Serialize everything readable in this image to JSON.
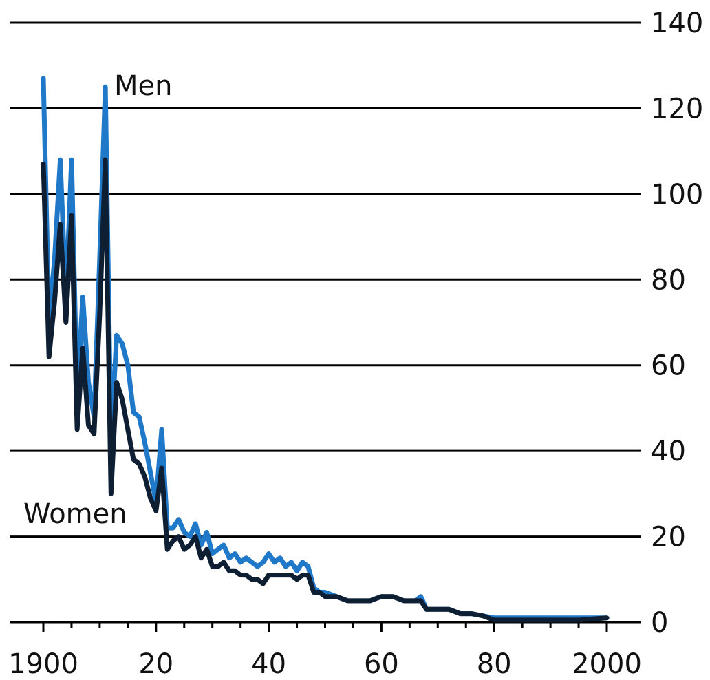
{
  "chart_data": {
    "type": "line",
    "title": "",
    "xlabel": "",
    "ylabel": "",
    "xlim": [
      1900,
      2000
    ],
    "ylim": [
      0,
      140
    ],
    "y_ticks": [
      0,
      20,
      40,
      60,
      80,
      100,
      120,
      140
    ],
    "x_ticks": [
      1900,
      1920,
      1940,
      1960,
      1980,
      2000
    ],
    "x_tick_labels": [
      "1900",
      "20",
      "40",
      "60",
      "80",
      "2000"
    ],
    "y_axis_side": "right",
    "grid": "horizontal",
    "legend": "none",
    "annotations": [
      {
        "text": "Men",
        "series": "Men"
      },
      {
        "text": "Women",
        "series": "Women"
      }
    ],
    "series": [
      {
        "name": "Men",
        "color": "#1f78c8",
        "x": [
          1900,
          1901,
          1902,
          1903,
          1904,
          1905,
          1906,
          1907,
          1908,
          1909,
          1910,
          1911,
          1912,
          1913,
          1914,
          1915,
          1916,
          1917,
          1918,
          1919,
          1920,
          1921,
          1922,
          1923,
          1924,
          1925,
          1926,
          1927,
          1928,
          1929,
          1930,
          1931,
          1932,
          1933,
          1934,
          1935,
          1936,
          1937,
          1938,
          1939,
          1940,
          1941,
          1942,
          1943,
          1944,
          1945,
          1946,
          1947,
          1948,
          1949,
          1950,
          1952,
          1954,
          1956,
          1958,
          1960,
          1962,
          1964,
          1966,
          1967,
          1968,
          1970,
          1972,
          1974,
          1976,
          1978,
          1980,
          1982,
          1985,
          1990,
          1995,
          2000
        ],
        "values": [
          127,
          70,
          85,
          108,
          75,
          108,
          52,
          76,
          56,
          48,
          85,
          125,
          42,
          67,
          65,
          60,
          49,
          48,
          42,
          35,
          28,
          45,
          22,
          22,
          24,
          21,
          20,
          23,
          18,
          21,
          16,
          17,
          18,
          15,
          16,
          14,
          15,
          14,
          13,
          14,
          16,
          14,
          15,
          13,
          14,
          12,
          14,
          13,
          8,
          7,
          7,
          6,
          5,
          5,
          5,
          6,
          6,
          5,
          5,
          6,
          3,
          3,
          3,
          2,
          2,
          1.5,
          1,
          1,
          1,
          1,
          1,
          1
        ]
      },
      {
        "name": "Women",
        "color": "#0f1f33",
        "x": [
          1900,
          1901,
          1902,
          1903,
          1904,
          1905,
          1906,
          1907,
          1908,
          1909,
          1910,
          1911,
          1912,
          1913,
          1914,
          1915,
          1916,
          1917,
          1918,
          1919,
          1920,
          1921,
          1922,
          1923,
          1924,
          1925,
          1926,
          1927,
          1928,
          1929,
          1930,
          1931,
          1932,
          1933,
          1934,
          1935,
          1936,
          1937,
          1938,
          1939,
          1940,
          1941,
          1942,
          1943,
          1944,
          1945,
          1946,
          1947,
          1948,
          1949,
          1950,
          1952,
          1954,
          1956,
          1958,
          1960,
          1962,
          1964,
          1966,
          1967,
          1968,
          1970,
          1972,
          1974,
          1976,
          1978,
          1980,
          1982,
          1985,
          1990,
          1995,
          2000
        ],
        "values": [
          107,
          62,
          75,
          93,
          70,
          95,
          45,
          64,
          46,
          44,
          72,
          108,
          30,
          56,
          52,
          45,
          38,
          37,
          34,
          29,
          26,
          36,
          17,
          19,
          20,
          17,
          18,
          20,
          15,
          17,
          13,
          13,
          14,
          12,
          12,
          11,
          11,
          10,
          10,
          9,
          11,
          11,
          11,
          11,
          11,
          10,
          11,
          11,
          7,
          7,
          6,
          6,
          5,
          5,
          5,
          6,
          6,
          5,
          5,
          5,
          3,
          3,
          3,
          2,
          2,
          1.5,
          0.5,
          0.5,
          0.5,
          0.5,
          0.5,
          1
        ]
      }
    ]
  }
}
